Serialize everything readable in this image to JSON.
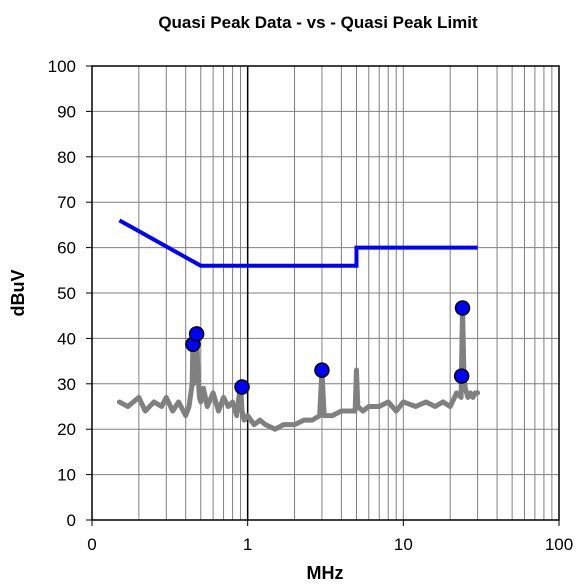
{
  "chart_data": {
    "type": "line",
    "title": "Quasi Peak Data - vs - Quasi Peak Limit",
    "xlabel": "MHz",
    "ylabel": "dBuV",
    "xscale": "log",
    "xlim": [
      0.1,
      100
    ],
    "ylim": [
      0,
      100
    ],
    "x_ticks": [
      0.1,
      1,
      10,
      100
    ],
    "x_tick_labels": [
      "0",
      "1",
      "10",
      "100"
    ],
    "y_ticks": [
      0,
      10,
      20,
      30,
      40,
      50,
      60,
      70,
      80,
      90,
      100
    ],
    "grid": true,
    "legend": "none",
    "colors": {
      "limit": "#0000ff",
      "data": "#808080",
      "markers": "#0000ff",
      "reference_line": "#000000"
    },
    "reference_line_x": 1,
    "series": [
      {
        "kind": "limit-line",
        "x": [
          0.15,
          0.5,
          0.5,
          5,
          5,
          30
        ],
        "y": [
          66,
          56,
          56,
          56,
          60,
          60
        ]
      },
      {
        "kind": "measured-trace",
        "x": [
          0.15,
          0.17,
          0.2,
          0.22,
          0.25,
          0.28,
          0.3,
          0.33,
          0.36,
          0.4,
          0.42,
          0.44,
          0.445,
          0.45,
          0.46,
          0.47,
          0.48,
          0.49,
          0.5,
          0.52,
          0.55,
          0.6,
          0.65,
          0.7,
          0.75,
          0.8,
          0.85,
          0.9,
          0.92,
          0.95,
          1.0,
          1.1,
          1.2,
          1.3,
          1.5,
          1.7,
          2.0,
          2.3,
          2.6,
          2.9,
          3.0,
          3.1,
          3.5,
          4.0,
          4.5,
          4.9,
          5.0,
          5.1,
          5.5,
          6.0,
          7.0,
          8.0,
          9.0,
          10.0,
          12.0,
          14.0,
          16.0,
          18.0,
          20.0,
          22.0,
          23.5,
          24.0,
          24.5,
          25.0,
          26.0,
          27.0,
          28.0,
          29.0,
          30.0
        ],
        "y": [
          26,
          25,
          27,
          24,
          26,
          25,
          27,
          24,
          26,
          23,
          25,
          30,
          39,
          30,
          37,
          41,
          32,
          27,
          26,
          29,
          25,
          28,
          24,
          27,
          25,
          26,
          23,
          30,
          24,
          22,
          23,
          21,
          22,
          21,
          20,
          21,
          21,
          22,
          22,
          23,
          33,
          23,
          23,
          24,
          24,
          24,
          33,
          25,
          24,
          25,
          25,
          26,
          24,
          26,
          25,
          26,
          25,
          26,
          25,
          28,
          27,
          47,
          32,
          29,
          27,
          28,
          27,
          28,
          28
        ]
      },
      {
        "kind": "quasi-peak-points",
        "x": [
          0.445,
          0.47,
          0.92,
          3.0,
          23.7,
          24.0
        ],
        "y": [
          38.7,
          41.0,
          29.3,
          33.0,
          31.7,
          46.7
        ]
      }
    ]
  }
}
